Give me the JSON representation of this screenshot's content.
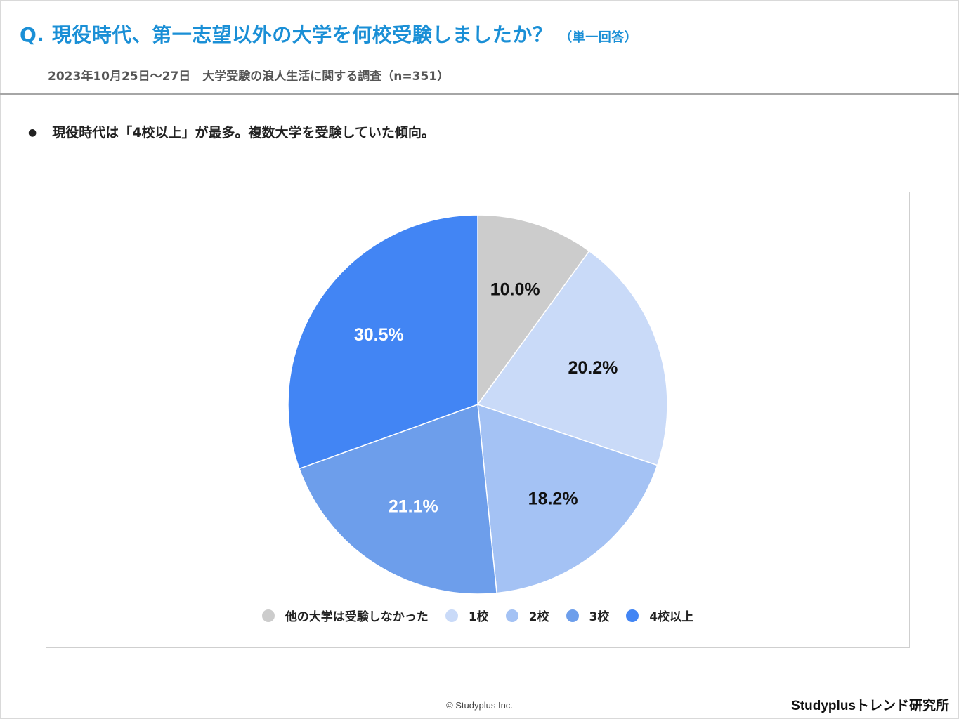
{
  "header": {
    "title": "Q. 現役時代、第一志望以外の大学を何校受験しましたか？",
    "title_note": "（単一回答）",
    "subtitle": "2023年10月25日～27日　大学受験の浪人生活に関する調査（n=351）"
  },
  "finding": {
    "bullet": "●",
    "text": "現役時代は「4校以上」が最多。複数大学を受験していた傾向。"
  },
  "chart_data": {
    "type": "pie",
    "start_angle_deg": 0,
    "direction": "clockwise",
    "slices": [
      {
        "label": "他の大学は受験しなかった",
        "value": 10.0,
        "display": "10.0%",
        "color": "#cccccc",
        "label_color": "#111111"
      },
      {
        "label": "1校",
        "value": 20.2,
        "display": "20.2%",
        "color": "#c9daf8",
        "label_color": "#111111"
      },
      {
        "label": "2校",
        "value": 18.2,
        "display": "18.2%",
        "color": "#a4c2f4",
        "label_color": "#111111"
      },
      {
        "label": "3校",
        "value": 21.1,
        "display": "21.1%",
        "color": "#6d9eeb",
        "label_color": "#ffffff"
      },
      {
        "label": "4校以上",
        "value": 30.5,
        "display": "30.5%",
        "color": "#4285f4",
        "label_color": "#ffffff"
      }
    ],
    "legend_position": "bottom"
  },
  "footer": {
    "copyright": "© Studyplus Inc.",
    "brand": "Studyplusトレンド研究所"
  }
}
